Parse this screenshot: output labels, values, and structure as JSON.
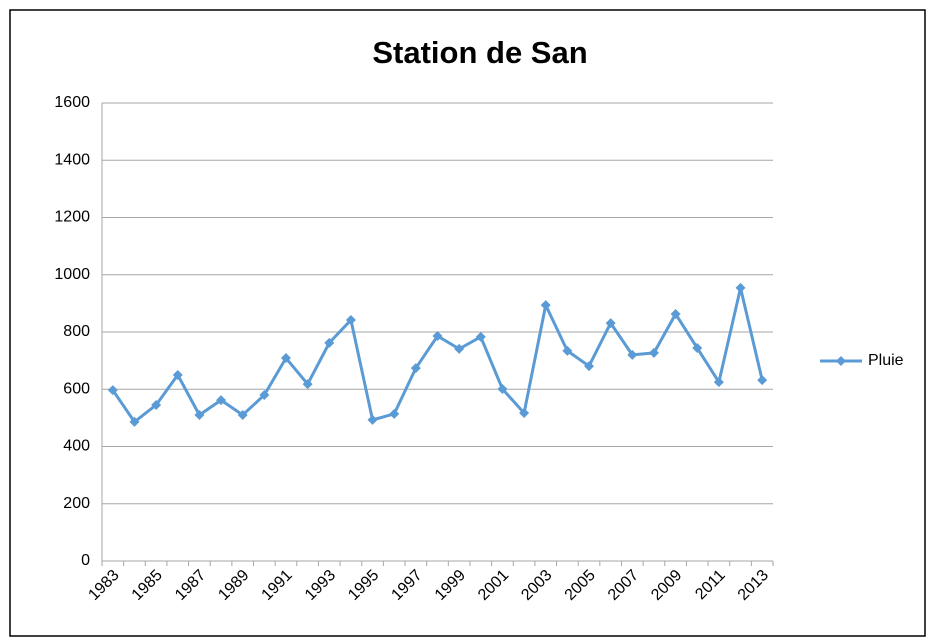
{
  "chart_data": {
    "type": "line",
    "title": "Station de San",
    "categories": [
      "1983",
      null,
      "1985",
      null,
      "1987",
      null,
      "1989",
      null,
      "1991",
      null,
      "1993",
      null,
      "1995",
      null,
      "1997",
      null,
      "1999",
      null,
      "2001",
      null,
      "2003",
      null,
      "2005",
      null,
      "2007",
      null,
      "2009",
      null,
      "2011",
      null,
      "2013"
    ],
    "series": [
      {
        "name": "Pluie",
        "color": "#5b9bd5",
        "values": [
          597,
          486,
          545,
          650,
          510,
          562,
          510,
          580,
          709,
          618,
          762,
          842,
          493,
          514,
          674,
          786,
          741,
          783,
          601,
          517,
          894,
          734,
          681,
          831,
          720,
          727,
          863,
          744,
          625,
          954,
          632
        ]
      }
    ],
    "ylim": [
      0,
      1600
    ],
    "yticks": [
      0,
      200,
      400,
      600,
      800,
      1000,
      1200,
      1400,
      1600
    ],
    "grid": true,
    "legend": "right"
  }
}
